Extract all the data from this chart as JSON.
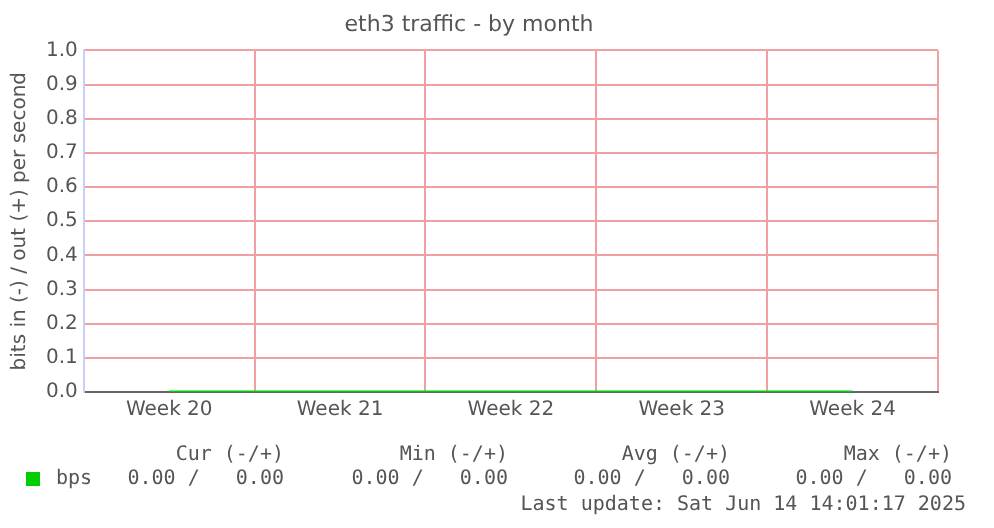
{
  "chart_data": {
    "type": "line",
    "title": "eth3 traffic - by month",
    "ylabel": "bits in (-) / out (+) per second",
    "categories": [
      "Week 20",
      "Week 21",
      "Week 22",
      "Week 23",
      "Week 24"
    ],
    "series": [
      {
        "name": "bps",
        "color": "#00cc00",
        "values": [
          0,
          0,
          0,
          0,
          0
        ]
      }
    ],
    "ylim": [
      0,
      1
    ],
    "yticks": [
      {
        "value": 0,
        "label": "0.0"
      },
      {
        "value": 0.1,
        "label": "0.1"
      },
      {
        "value": 0.2,
        "label": "0.2"
      },
      {
        "value": 0.3,
        "label": "0.3"
      },
      {
        "value": 0.4,
        "label": "0.4"
      },
      {
        "value": 0.5,
        "label": "0.5"
      },
      {
        "value": 0.6,
        "label": "0.6"
      },
      {
        "value": 0.7,
        "label": "0.7"
      },
      {
        "value": 0.8,
        "label": "0.8"
      },
      {
        "value": 0.9,
        "label": "0.9"
      },
      {
        "value": 1,
        "label": "1.0"
      }
    ],
    "grid": true,
    "legend": "bottom left",
    "marker": "none",
    "line_style": "solid",
    "annotations": [
      "Cur (-/+)",
      "Min (-/+)",
      "Avg (-/+)",
      "Max (-/+)",
      "0.00 /   0.00",
      "0.00 /   0.00",
      "0.00 /   0.00",
      "0.00 /   0.00",
      "Last update: Sat Jun 14 14:01:17 2025"
    ]
  }
}
